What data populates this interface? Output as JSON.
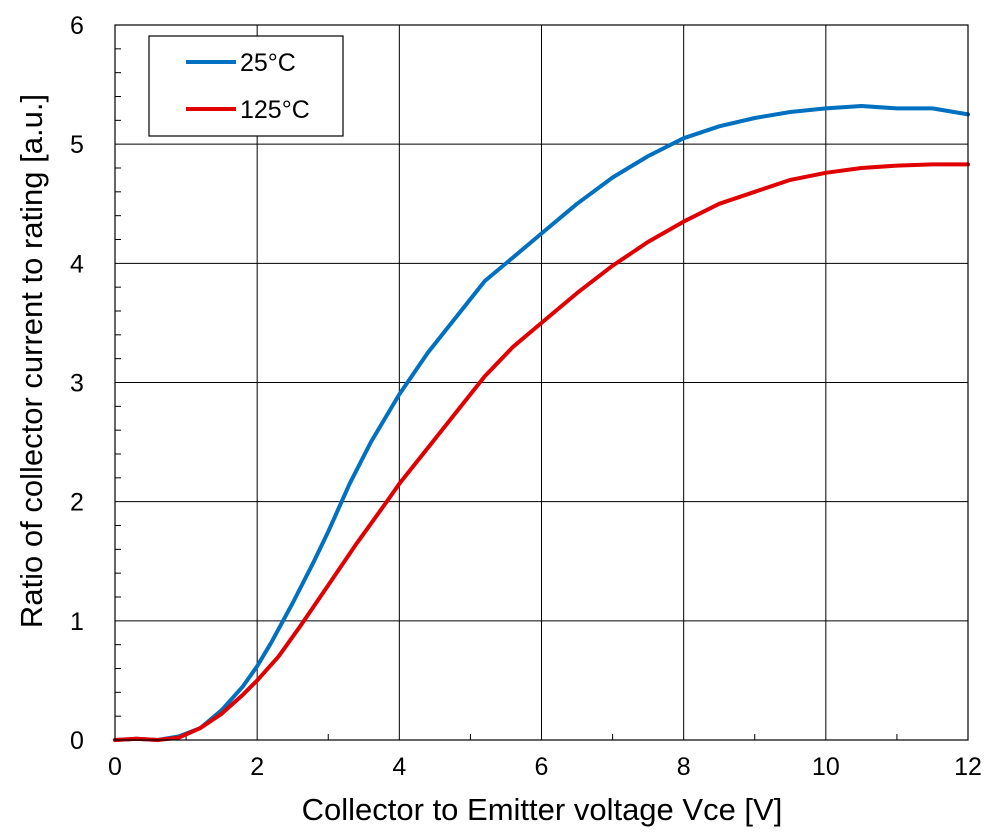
{
  "chart_data": {
    "type": "line",
    "title": "",
    "xlabel": "Collector to Emitter voltage Vce [V]",
    "ylabel": "Ratio of collector current to rating [a.u.]",
    "xlim": [
      0,
      12
    ],
    "ylim": [
      0,
      6
    ],
    "x_ticks": [
      "0",
      "2",
      "4",
      "6",
      "8",
      "10",
      "12"
    ],
    "y_ticks": [
      "0",
      "1",
      "2",
      "3",
      "4",
      "5",
      "6"
    ],
    "grid": true,
    "legend_position": "top-left",
    "series": [
      {
        "name": "25°C",
        "color": "#0070C0",
        "x": [
          0,
          0.3,
          0.6,
          0.9,
          1.2,
          1.5,
          1.8,
          2.0,
          2.2,
          2.5,
          2.8,
          3.0,
          3.3,
          3.6,
          4.0,
          4.4,
          4.8,
          5.2,
          5.6,
          6.0,
          6.5,
          7.0,
          7.5,
          8.0,
          8.5,
          9.0,
          9.5,
          10.0,
          10.5,
          11.0,
          11.5,
          12.0
        ],
        "y": [
          0,
          0.01,
          0.0,
          0.03,
          0.1,
          0.25,
          0.45,
          0.62,
          0.82,
          1.15,
          1.5,
          1.75,
          2.15,
          2.5,
          2.9,
          3.25,
          3.55,
          3.85,
          4.05,
          4.25,
          4.5,
          4.72,
          4.9,
          5.05,
          5.15,
          5.22,
          5.27,
          5.3,
          5.32,
          5.3,
          5.3,
          5.25
        ]
      },
      {
        "name": "125°C",
        "color": "#E00000",
        "x": [
          0,
          0.3,
          0.6,
          0.9,
          1.2,
          1.5,
          1.8,
          2.0,
          2.3,
          2.6,
          3.0,
          3.4,
          3.8,
          4.0,
          4.4,
          4.8,
          5.2,
          5.6,
          6.0,
          6.5,
          7.0,
          7.5,
          8.0,
          8.5,
          9.0,
          9.5,
          10.0,
          10.5,
          11.0,
          11.5,
          12.0
        ],
        "y": [
          0,
          0.01,
          0.0,
          0.02,
          0.1,
          0.22,
          0.38,
          0.5,
          0.7,
          0.95,
          1.3,
          1.65,
          1.98,
          2.15,
          2.45,
          2.75,
          3.05,
          3.3,
          3.5,
          3.75,
          3.98,
          4.18,
          4.35,
          4.5,
          4.6,
          4.7,
          4.76,
          4.8,
          4.82,
          4.83,
          4.83
        ]
      }
    ]
  }
}
